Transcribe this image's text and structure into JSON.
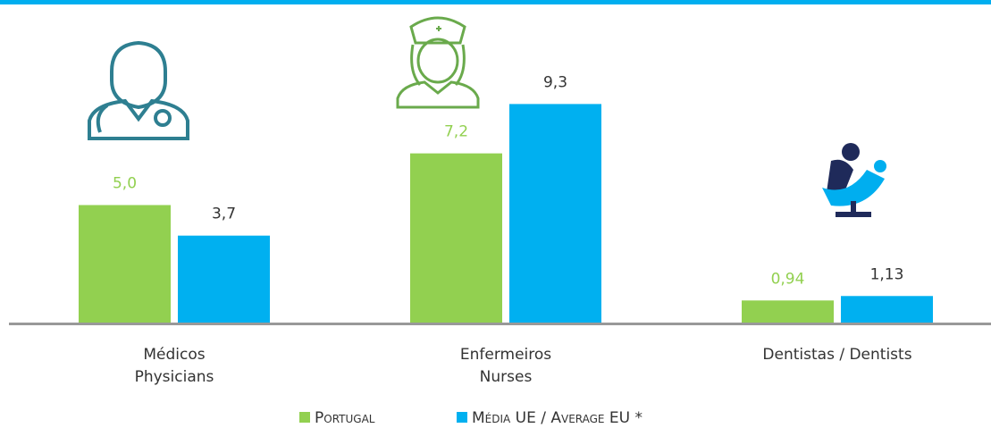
{
  "chart_data": {
    "type": "bar",
    "categories": [
      [
        "Médicos",
        "Physicians"
      ],
      [
        "Enfermeiros",
        "Nurses"
      ],
      [
        "Dentistas / Dentists"
      ]
    ],
    "series": [
      {
        "name": "Portugal",
        "color": "#92d050",
        "values": [
          5.0,
          7.2,
          0.94
        ],
        "value_labels": [
          "5,0",
          "7,2",
          "0,94"
        ]
      },
      {
        "name": "Média UE / Average EU *",
        "color": "#00b0f0",
        "values": [
          3.7,
          9.3,
          1.13
        ],
        "value_labels": [
          "3,7",
          "9,3",
          "1,13"
        ]
      }
    ],
    "ylim": [
      0,
      10
    ]
  }
}
